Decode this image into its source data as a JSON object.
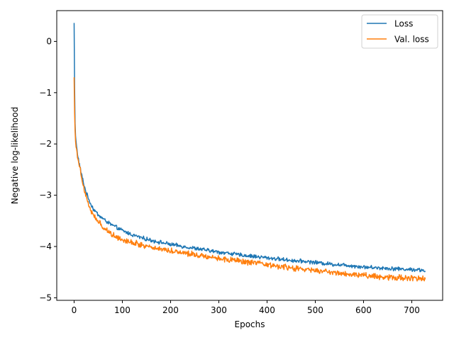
{
  "chart_data": {
    "type": "line",
    "xlabel": "Epochs",
    "ylabel": "Negative log-likelihood",
    "xlim": [
      -36,
      764
    ],
    "ylim": [
      -5.05,
      0.6
    ],
    "xticks": [
      0,
      100,
      200,
      300,
      400,
      500,
      600,
      700
    ],
    "yticks": [
      0,
      -1,
      -2,
      -3,
      -4,
      -5
    ],
    "grid": false,
    "legend": {
      "placement": "top-right",
      "entries": [
        "Loss",
        "Val. loss"
      ]
    },
    "series": [
      {
        "name": "Loss",
        "color": "#1f77b4",
        "x": [
          0,
          1,
          2,
          3,
          5,
          8,
          12,
          16,
          20,
          25,
          30,
          35,
          40,
          50,
          60,
          70,
          80,
          90,
          100,
          120,
          140,
          160,
          180,
          200,
          220,
          240,
          260,
          280,
          300,
          320,
          340,
          360,
          380,
          400,
          420,
          440,
          460,
          480,
          500,
          520,
          540,
          560,
          580,
          600,
          620,
          640,
          660,
          680,
          700,
          710,
          720,
          728
        ],
        "y": [
          0.36,
          -0.9,
          -1.6,
          -1.85,
          -2.05,
          -2.25,
          -2.45,
          -2.62,
          -2.78,
          -2.95,
          -3.07,
          -3.18,
          -3.27,
          -3.38,
          -3.46,
          -3.53,
          -3.59,
          -3.64,
          -3.69,
          -3.77,
          -3.83,
          -3.88,
          -3.92,
          -3.96,
          -3.99,
          -4.02,
          -4.05,
          -4.08,
          -4.11,
          -4.13,
          -4.16,
          -4.18,
          -4.2,
          -4.22,
          -4.24,
          -4.26,
          -4.28,
          -4.29,
          -4.31,
          -4.33,
          -4.35,
          -4.36,
          -4.38,
          -4.4,
          -4.41,
          -4.42,
          -4.43,
          -4.44,
          -4.45,
          -4.45,
          -4.46,
          -4.47
        ]
      },
      {
        "name": "Val. loss",
        "color": "#ff7f0e",
        "x": [
          0,
          1,
          2,
          3,
          5,
          8,
          12,
          16,
          20,
          25,
          30,
          35,
          40,
          50,
          60,
          70,
          80,
          90,
          100,
          120,
          140,
          160,
          180,
          200,
          220,
          240,
          260,
          280,
          300,
          320,
          340,
          360,
          380,
          400,
          420,
          440,
          460,
          480,
          500,
          520,
          540,
          560,
          580,
          600,
          620,
          640,
          660,
          680,
          700,
          710,
          720,
          728
        ],
        "y": [
          -0.7,
          -1.4,
          -1.75,
          -1.95,
          -2.1,
          -2.28,
          -2.48,
          -2.66,
          -2.84,
          -3.02,
          -3.18,
          -3.3,
          -3.4,
          -3.52,
          -3.62,
          -3.7,
          -3.77,
          -3.82,
          -3.86,
          -3.92,
          -3.97,
          -4.01,
          -4.05,
          -4.08,
          -4.11,
          -4.14,
          -4.17,
          -4.2,
          -4.23,
          -4.26,
          -4.28,
          -4.31,
          -4.33,
          -4.36,
          -4.38,
          -4.41,
          -4.43,
          -4.45,
          -4.47,
          -4.49,
          -4.51,
          -4.53,
          -4.55,
          -4.56,
          -4.58,
          -4.59,
          -4.6,
          -4.61,
          -4.62,
          -4.62,
          -4.63,
          -4.63
        ]
      }
    ]
  }
}
